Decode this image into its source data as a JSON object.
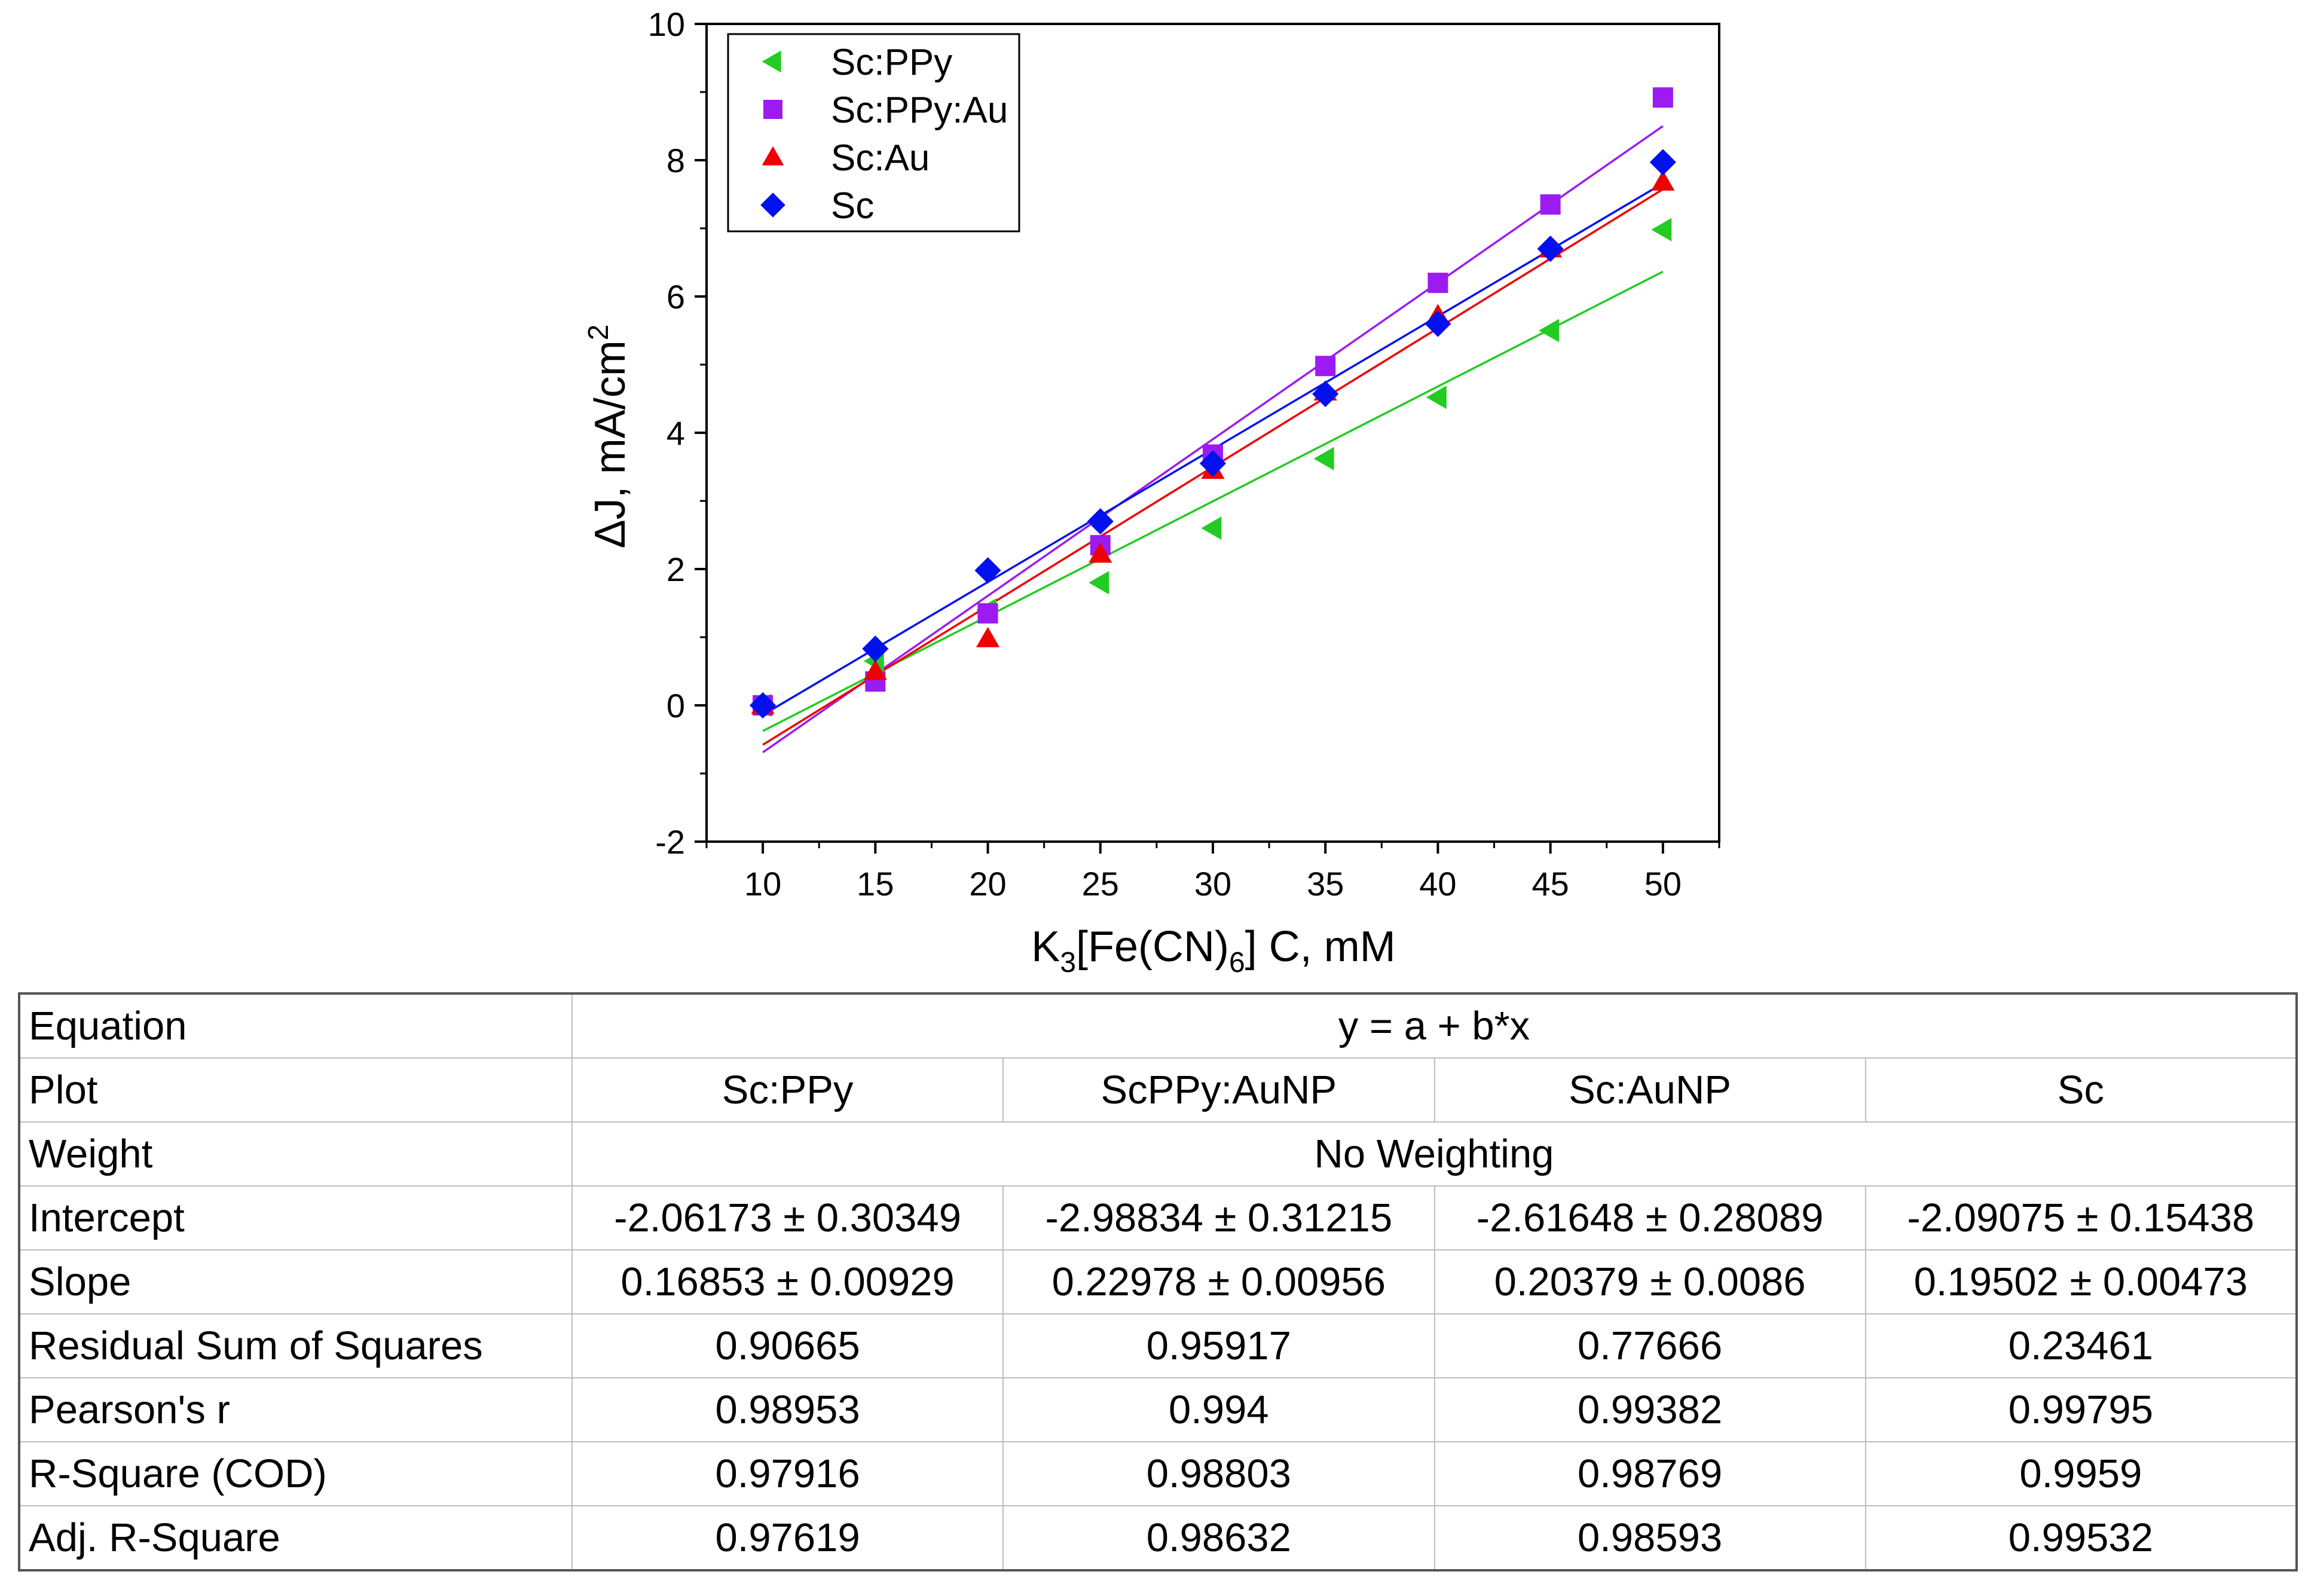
{
  "chart_data": {
    "type": "scatter",
    "xlabel": "K3[Fe(CN)6] C, mM",
    "xlabel_parts": {
      "k": "K",
      "sub1": "3",
      "mid": "[Fe(CN)",
      "sub2": "6",
      "tail": "] C, mM"
    },
    "ylabel": "ΔJ, mA/cm2",
    "ylabel_parts": {
      "main": "ΔJ, mA/cm",
      "sup": "2"
    },
    "xlim": [
      7.5,
      52.5
    ],
    "ylim": [
      -2,
      10
    ],
    "xticks": [
      10,
      15,
      20,
      25,
      30,
      35,
      40,
      45,
      50
    ],
    "yticks": [
      -2,
      0,
      2,
      4,
      6,
      8,
      10
    ],
    "legend_position": "top-left",
    "x": [
      10,
      15,
      20,
      25,
      30,
      35,
      40,
      45,
      50
    ],
    "series": [
      {
        "name": "Sc:PPy",
        "marker": "triangle-left",
        "color": "#22cc22",
        "values": [
          0.0,
          0.65,
          1.4,
          1.8,
          2.6,
          3.62,
          4.52,
          5.5,
          6.98
        ],
        "fit": {
          "intercept": -2.06173,
          "slope": 0.16853
        }
      },
      {
        "name": "Sc:PPy:Au",
        "marker": "square",
        "color": "#9b1bf2",
        "values": [
          0.0,
          0.35,
          1.35,
          2.35,
          3.68,
          4.98,
          6.2,
          7.35,
          8.92
        ],
        "fit": {
          "intercept": -2.98834,
          "slope": 0.22978
        }
      },
      {
        "name": "Sc:Au",
        "marker": "triangle-up",
        "color": "#ee0000",
        "values": [
          0.0,
          0.5,
          0.98,
          2.22,
          3.45,
          4.6,
          5.72,
          6.7,
          7.68
        ],
        "fit": {
          "intercept": -2.61648,
          "slope": 0.20379
        }
      },
      {
        "name": "Sc",
        "marker": "diamond",
        "color": "#0011ee",
        "values": [
          0.0,
          0.83,
          1.98,
          2.7,
          3.55,
          4.57,
          5.6,
          6.7,
          7.97
        ],
        "fit": {
          "intercept": -2.09075,
          "slope": 0.19502
        }
      }
    ]
  },
  "table": {
    "rows": [
      {
        "label": "Equation",
        "merged": "y = a + b*x"
      },
      {
        "label": "Plot",
        "cells": [
          "Sc:PPy",
          "ScPPy:AuNP",
          "Sc:AuNP",
          "Sc"
        ]
      },
      {
        "label": "Weight",
        "merged": "No Weighting"
      },
      {
        "label": "Intercept",
        "cells": [
          "-2.06173 ± 0.30349",
          "-2.98834 ± 0.31215",
          "-2.61648 ± 0.28089",
          "-2.09075 ± 0.15438"
        ]
      },
      {
        "label": "Slope",
        "cells": [
          "0.16853 ± 0.00929",
          "0.22978 ± 0.00956",
          "0.20379 ± 0.0086",
          "0.19502 ± 0.00473"
        ]
      },
      {
        "label": "Residual Sum of Squares",
        "cells": [
          "0.90665",
          "0.95917",
          "0.77666",
          "0.23461"
        ]
      },
      {
        "label": "Pearson's r",
        "cells": [
          "0.98953",
          "0.994",
          "0.99382",
          "0.99795"
        ]
      },
      {
        "label": "R-Square (COD)",
        "cells": [
          "0.97916",
          "0.98803",
          "0.98769",
          "0.9959"
        ]
      },
      {
        "label": "Adj. R-Square",
        "cells": [
          "0.97619",
          "0.98632",
          "0.98593",
          "0.99532"
        ]
      }
    ]
  }
}
